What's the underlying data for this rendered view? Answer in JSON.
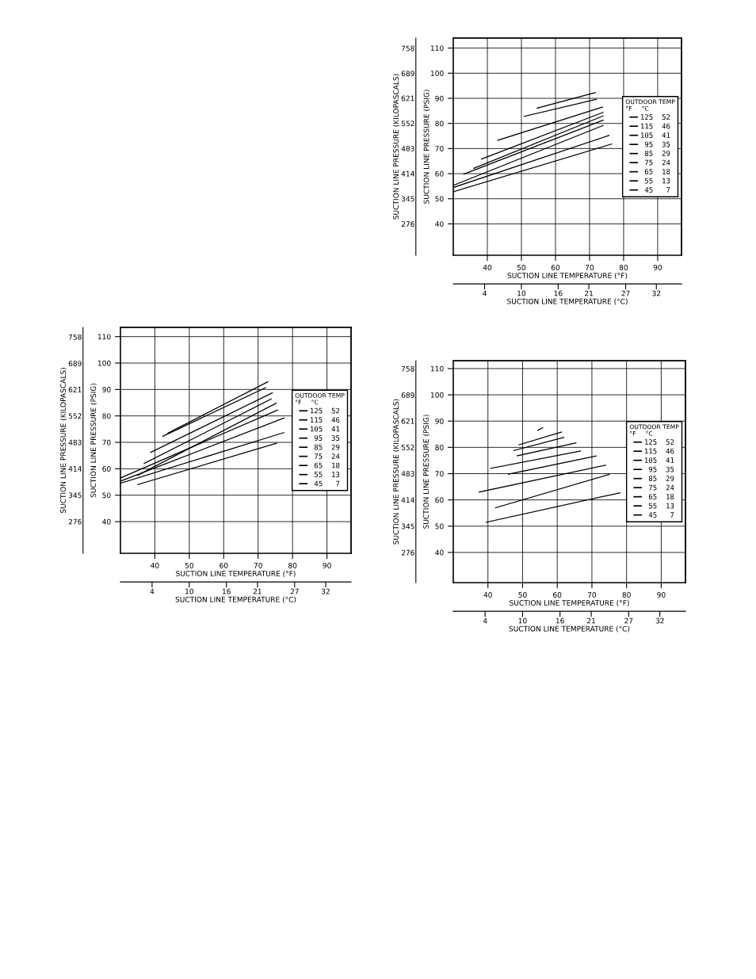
{
  "chart_data": [
    {
      "type": "line",
      "xlabel": "SUCTION LINE TEMPERATURE (°F)",
      "x2label": "SUCTION LINE TEMPERATURE (°C)",
      "ylabel": "SUCTION LINE PRESSURE (PSIG)",
      "y2label": "SUCTION LINE PRESSURE (KILOPASCALS)",
      "legend_title": "OUTDOOR TEMP\n°F     °C",
      "legend": "right",
      "grid": true,
      "marker": "none",
      "line_style": "solid",
      "xlim": [
        30,
        97
      ],
      "xticks": [
        40,
        50,
        60,
        70,
        80,
        90
      ],
      "x2lim": [
        -1.1,
        36.1
      ],
      "x2ticks": [
        4,
        10,
        16,
        21,
        27,
        32
      ],
      "ylim": [
        28,
        113.5
      ],
      "yticks": [
        40,
        50,
        60,
        70,
        80,
        90,
        100,
        110
      ],
      "y2lim": [
        193,
        783
      ],
      "y2ticks": [
        276,
        345,
        414,
        483,
        552,
        621,
        689,
        758
      ],
      "series": [
        {
          "name": "125  52",
          "color": "#000000",
          "x": [
            43.8,
            72.8
          ],
          "values": [
            73.5,
            92.9
          ]
        },
        {
          "name": "115  46",
          "color": "#000000",
          "x": [
            42.3,
            72.2
          ],
          "values": [
            72.3,
            90.7
          ]
        },
        {
          "name": "105  41",
          "color": "#000000",
          "x": [
            38.8,
            74.1
          ],
          "values": [
            66.2,
            88.7
          ]
        },
        {
          "name": " 95  35",
          "color": "#000000",
          "x": [
            36.9,
            73.8
          ],
          "values": [
            62.0,
            86.4
          ]
        },
        {
          "name": " 85  29",
          "color": "#000000",
          "x": [
            35.0,
            75.2
          ],
          "values": [
            57.5,
            84.8
          ]
        },
        {
          "name": " 75  24",
          "color": "#000000",
          "x": [
            30,
            75.6
          ],
          "values": [
            56.5,
            82.2
          ]
        },
        {
          "name": " 65  18",
          "color": "#000000",
          "x": [
            30,
            77.5
          ],
          "values": [
            55.3,
            79.2
          ]
        },
        {
          "name": " 55  13",
          "color": "#000000",
          "x": [
            30,
            77.5
          ],
          "values": [
            54.5,
            73.7
          ]
        },
        {
          "name": " 45   7",
          "color": "#000000",
          "x": [
            35.0,
            75.4
          ],
          "values": [
            54.0,
            69.7
          ]
        }
      ]
    },
    {
      "type": "line",
      "xlabel": "SUCTION LINE TEMPERATURE (°F)",
      "x2label": "SUCTION LINE TEMPERATURE (°C)",
      "ylabel": "SUCTION LINE PRESSURE (PSIG)",
      "y2label": "SUCTION LINE PRESSURE (KILOPASCALS)",
      "legend_title": "OUTDOOR TEMP\n°F     °C",
      "legend": "right",
      "grid": true,
      "marker": "none",
      "line_style": "solid",
      "xlim": [
        30,
        97
      ],
      "xticks": [
        40,
        50,
        60,
        70,
        80,
        90
      ],
      "x2lim": [
        -1.1,
        36.1
      ],
      "x2ticks": [
        4,
        10,
        16,
        21,
        27,
        32
      ],
      "ylim": [
        27.5,
        114
      ],
      "yticks": [
        40,
        50,
        60,
        70,
        80,
        90,
        100,
        110
      ],
      "y2lim": [
        190,
        786
      ],
      "y2ticks": [
        276,
        345,
        414,
        483,
        552,
        621,
        689,
        758
      ],
      "series": [
        {
          "name": "125  52",
          "color": "#000000",
          "x": [
            54.6,
            71.7
          ],
          "values": [
            86.1,
            92.3
          ]
        },
        {
          "name": "115  46",
          "color": "#000000",
          "x": [
            50.8,
            72.0
          ],
          "values": [
            82.8,
            89.6
          ]
        },
        {
          "name": "105  41",
          "color": "#000000",
          "x": [
            43.1,
            73.8
          ],
          "values": [
            73.3,
            86.5
          ]
        },
        {
          "name": " 95  35",
          "color": "#000000",
          "x": [
            38.3,
            74.0
          ],
          "values": [
            65.8,
            84.4
          ]
        },
        {
          "name": " 85  29",
          "color": "#000000",
          "x": [
            36.0,
            74.0
          ],
          "values": [
            62.1,
            83.0
          ]
        },
        {
          "name": " 75  24",
          "color": "#000000",
          "x": [
            33.1,
            74.0
          ],
          "values": [
            59.8,
            81.3
          ]
        },
        {
          "name": " 65  18",
          "color": "#000000",
          "x": [
            30,
            74.0
          ],
          "values": [
            55.3,
            79.2
          ]
        },
        {
          "name": " 55  13",
          "color": "#000000",
          "x": [
            30,
            75.7
          ],
          "values": [
            54.5,
            75.2
          ]
        },
        {
          "name": " 45   7",
          "color": "#000000",
          "x": [
            30,
            76.5
          ],
          "values": [
            52.8,
            71.8
          ]
        }
      ]
    },
    {
      "type": "line",
      "xlabel": "SUCTION LINE TEMPERATURE (°F)",
      "x2label": "SUCTION LINE TEMPERATURE (°C)",
      "ylabel": "SUCTION LINE PRESSURE (PSIG)",
      "y2label": "SUCTION LINE PRESSURE (KILOPASCALS)",
      "legend_title": "OUTDOOR TEMP\n°F     °C",
      "legend": "right",
      "grid": true,
      "marker": "none",
      "line_style": "solid",
      "xlim": [
        30,
        97
      ],
      "xticks": [
        40,
        50,
        60,
        70,
        80,
        90
      ],
      "x2lim": [
        -1.1,
        36.1
      ],
      "x2ticks": [
        4,
        10,
        16,
        21,
        27,
        32
      ],
      "ylim": [
        28.5,
        113
      ],
      "yticks": [
        40,
        50,
        60,
        70,
        80,
        90,
        100,
        110
      ],
      "y2lim": [
        197,
        779
      ],
      "y2ticks": [
        276,
        345,
        414,
        483,
        552,
        621,
        689,
        758
      ],
      "series": [
        {
          "name": "125  52",
          "color": "#000000",
          "x": [
            54.4,
            55.8
          ],
          "values": [
            86.5,
            87.5
          ]
        },
        {
          "name": "115  46",
          "color": "#000000",
          "x": [
            49.0,
            61.2
          ],
          "values": [
            81.0,
            85.8
          ]
        },
        {
          "name": "105  41",
          "color": "#000000",
          "x": [
            47.5,
            61.9
          ],
          "values": [
            78.8,
            83.8
          ]
        },
        {
          "name": " 95  35",
          "color": "#000000",
          "x": [
            48.5,
            65.4
          ],
          "values": [
            76.8,
            81.7
          ]
        },
        {
          "name": " 85  29",
          "color": "#000000",
          "x": [
            40.8,
            66.7
          ],
          "values": [
            72.0,
            78.6
          ]
        },
        {
          "name": " 75  24",
          "color": "#000000",
          "x": [
            45.9,
            71.2
          ],
          "values": [
            69.8,
            76.7
          ]
        },
        {
          "name": " 65  18",
          "color": "#000000",
          "x": [
            37.5,
            74.0
          ],
          "values": [
            63.0,
            73.2
          ]
        },
        {
          "name": " 55  13",
          "color": "#000000",
          "x": [
            42.2,
            75.0
          ],
          "values": [
            57.0,
            69.7
          ]
        },
        {
          "name": " 45   7",
          "color": "#000000",
          "x": [
            39.5,
            78.1
          ],
          "values": [
            51.5,
            62.7
          ]
        }
      ]
    }
  ]
}
